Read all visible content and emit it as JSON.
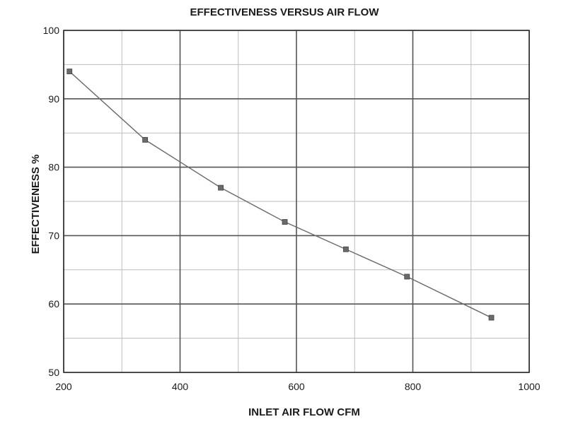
{
  "chart_data": {
    "type": "line",
    "title": "EFFECTIVENESS VERSUS AIR FLOW",
    "xlabel": "INLET AIR FLOW CFM",
    "ylabel": "EFFECTIVENESS %",
    "xlim": [
      200,
      1000
    ],
    "ylim": [
      50,
      100
    ],
    "x_ticks": [
      200,
      400,
      600,
      800,
      1000
    ],
    "y_ticks": [
      50,
      60,
      70,
      80,
      90,
      100
    ],
    "x_tick_labels": [
      "200",
      "400",
      "600",
      "800",
      "1000"
    ],
    "y_tick_labels": [
      "50",
      "60",
      "70",
      "80",
      "90",
      "100"
    ],
    "x_minor_ticks": [
      300,
      500,
      700,
      900
    ],
    "y_minor_ticks": [
      55,
      65,
      75,
      85,
      95
    ],
    "grid": true,
    "legend": "none",
    "series": [
      {
        "x": [
          210,
          340,
          470,
          580,
          685,
          790,
          935
        ],
        "y": [
          94,
          84,
          77,
          72,
          68,
          64,
          58
        ]
      }
    ],
    "colors": {
      "line": "#6a6a6a",
      "marker": "#6a6a6a",
      "grid_major": "#555555",
      "grid_minor": "#bdbdbd"
    },
    "marker_shape": "square"
  }
}
